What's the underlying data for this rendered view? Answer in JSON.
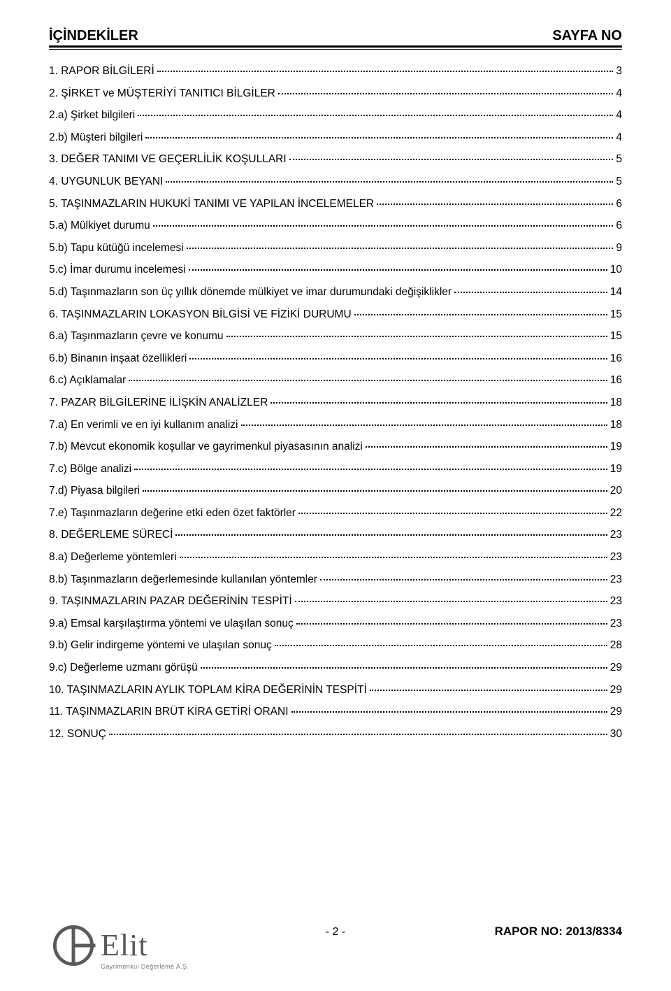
{
  "header": {
    "left": "İÇİNDEKİLER",
    "right": "SAYFA NO"
  },
  "toc": [
    {
      "label": "1. RAPOR BİLGİLERİ",
      "page": "3"
    },
    {
      "label": "2. ŞİRKET ve MÜŞTERİYİ TANITICI BİLGİLER",
      "page": "4"
    },
    {
      "label": "2.a) Şirket bilgileri",
      "page": "4"
    },
    {
      "label": "2.b) Müşteri bilgileri",
      "page": "4"
    },
    {
      "label": "3. DEĞER TANIMI VE GEÇERLİLİK KOŞULLARI",
      "page": "5"
    },
    {
      "label": "4. UYGUNLUK BEYANI",
      "page": "5"
    },
    {
      "label": "5. TAŞINMAZLARIN HUKUKİ TANIMI VE YAPILAN İNCELEMELER",
      "page": "6"
    },
    {
      "label": "5.a) Mülkiyet durumu",
      "page": "6"
    },
    {
      "label": "5.b) Tapu kütüğü incelemesi",
      "page": "9"
    },
    {
      "label": "5.c) İmar durumu incelemesi",
      "page": "10"
    },
    {
      "label": "5.d) Taşınmazların son üç yıllık dönemde mülkiyet ve imar durumundaki değişiklikler",
      "page": "14"
    },
    {
      "label": "6. TAŞINMAZLARIN LOKASYON BİLGİSİ VE FİZİKİ DURUMU",
      "page": "15"
    },
    {
      "label": "6.a) Taşınmazların çevre ve konumu",
      "page": "15"
    },
    {
      "label": "6.b) Binanın inşaat özellikleri",
      "page": "16"
    },
    {
      "label": "6.c) Açıklamalar",
      "page": "16"
    },
    {
      "label": "7. PAZAR BİLGİLERİNE İLİŞKİN ANALİZLER",
      "page": "18"
    },
    {
      "label": "7.a) En verimli ve en iyi kullanım analizi",
      "page": "18"
    },
    {
      "label": "7.b) Mevcut ekonomik koşullar ve gayrimenkul piyasasının analizi",
      "page": "19"
    },
    {
      "label": "7.c) Bölge analizi",
      "page": "19"
    },
    {
      "label": "7.d) Piyasa bilgileri",
      "page": "20"
    },
    {
      "label": "7.e) Taşınmazların değerine etki eden özet faktörler",
      "page": "22"
    },
    {
      "label": "8. DEĞERLEME SÜRECİ",
      "page": "23"
    },
    {
      "label": "8.a) Değerleme yöntemleri",
      "page": "23"
    },
    {
      "label": "8.b) Taşınmazların değerlemesinde kullanılan yöntemler",
      "page": "23"
    },
    {
      "label": "9. TAŞINMAZLARIN PAZAR DEĞERİNİN TESPİTİ",
      "page": "23"
    },
    {
      "label": "9.a) Emsal karşılaştırma yöntemi ve ulaşılan sonuç",
      "page": "23"
    },
    {
      "label": "9.b) Gelir indirgeme yöntemi ve ulaşılan sonuç",
      "page": "28"
    },
    {
      "label": "9.c) Değerleme uzmanı görüşü",
      "page": "29"
    },
    {
      "label": "10.  TAŞINMAZLARIN AYLIK TOPLAM KİRA DEĞERİNİN TESPİTİ",
      "page": "29"
    },
    {
      "label": "11.  TAŞINMAZLARIN BRÜT KİRA GETİRİ ORANI",
      "page": "29"
    },
    {
      "label": "12.  SONUÇ",
      "page": "30"
    }
  ],
  "footer": {
    "logo_name": "Elit",
    "logo_sub": "Gayrimenkul Değerleme A.Ş.",
    "page_indicator": "- 2 -",
    "report_label": "RAPOR NO: 2013/8334"
  },
  "style": {
    "text_color": "#000000",
    "background": "#ffffff",
    "logo_gray": "#5a5a5a",
    "font_size_header": 20,
    "font_size_toc": 15.5,
    "line_spacing": 13.6
  }
}
